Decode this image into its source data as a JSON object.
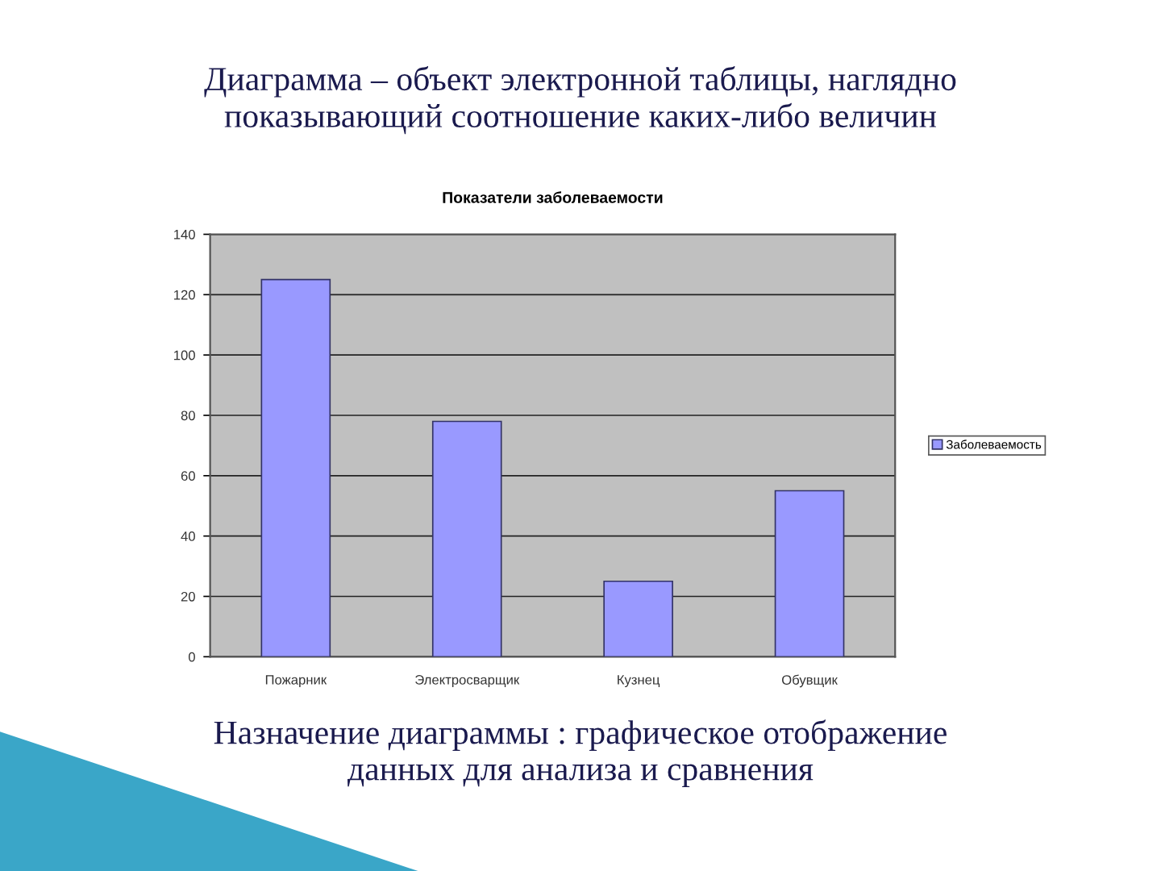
{
  "chart_data": {
    "type": "bar",
    "title": "Показатели заболеваемости",
    "categories": [
      "Пожарник",
      "Электросварщик",
      "Кузнец",
      "Обувщик"
    ],
    "series": [
      {
        "name": "Заболеваемость",
        "color": "#9999ff",
        "values": [
          125,
          78,
          25,
          55
        ]
      }
    ],
    "ylim": [
      0,
      140
    ],
    "yticks": [
      0,
      20,
      40,
      60,
      80,
      100,
      120,
      140
    ],
    "grid": "y",
    "legend": "right",
    "annotations": [
      "Диаграмма – объект электронной таблицы, наглядно\nпоказывающий соотношение каких-либо величин",
      "Назначение диаграммы : графическое отображение\nданных для анализа и сравнения"
    ]
  }
}
